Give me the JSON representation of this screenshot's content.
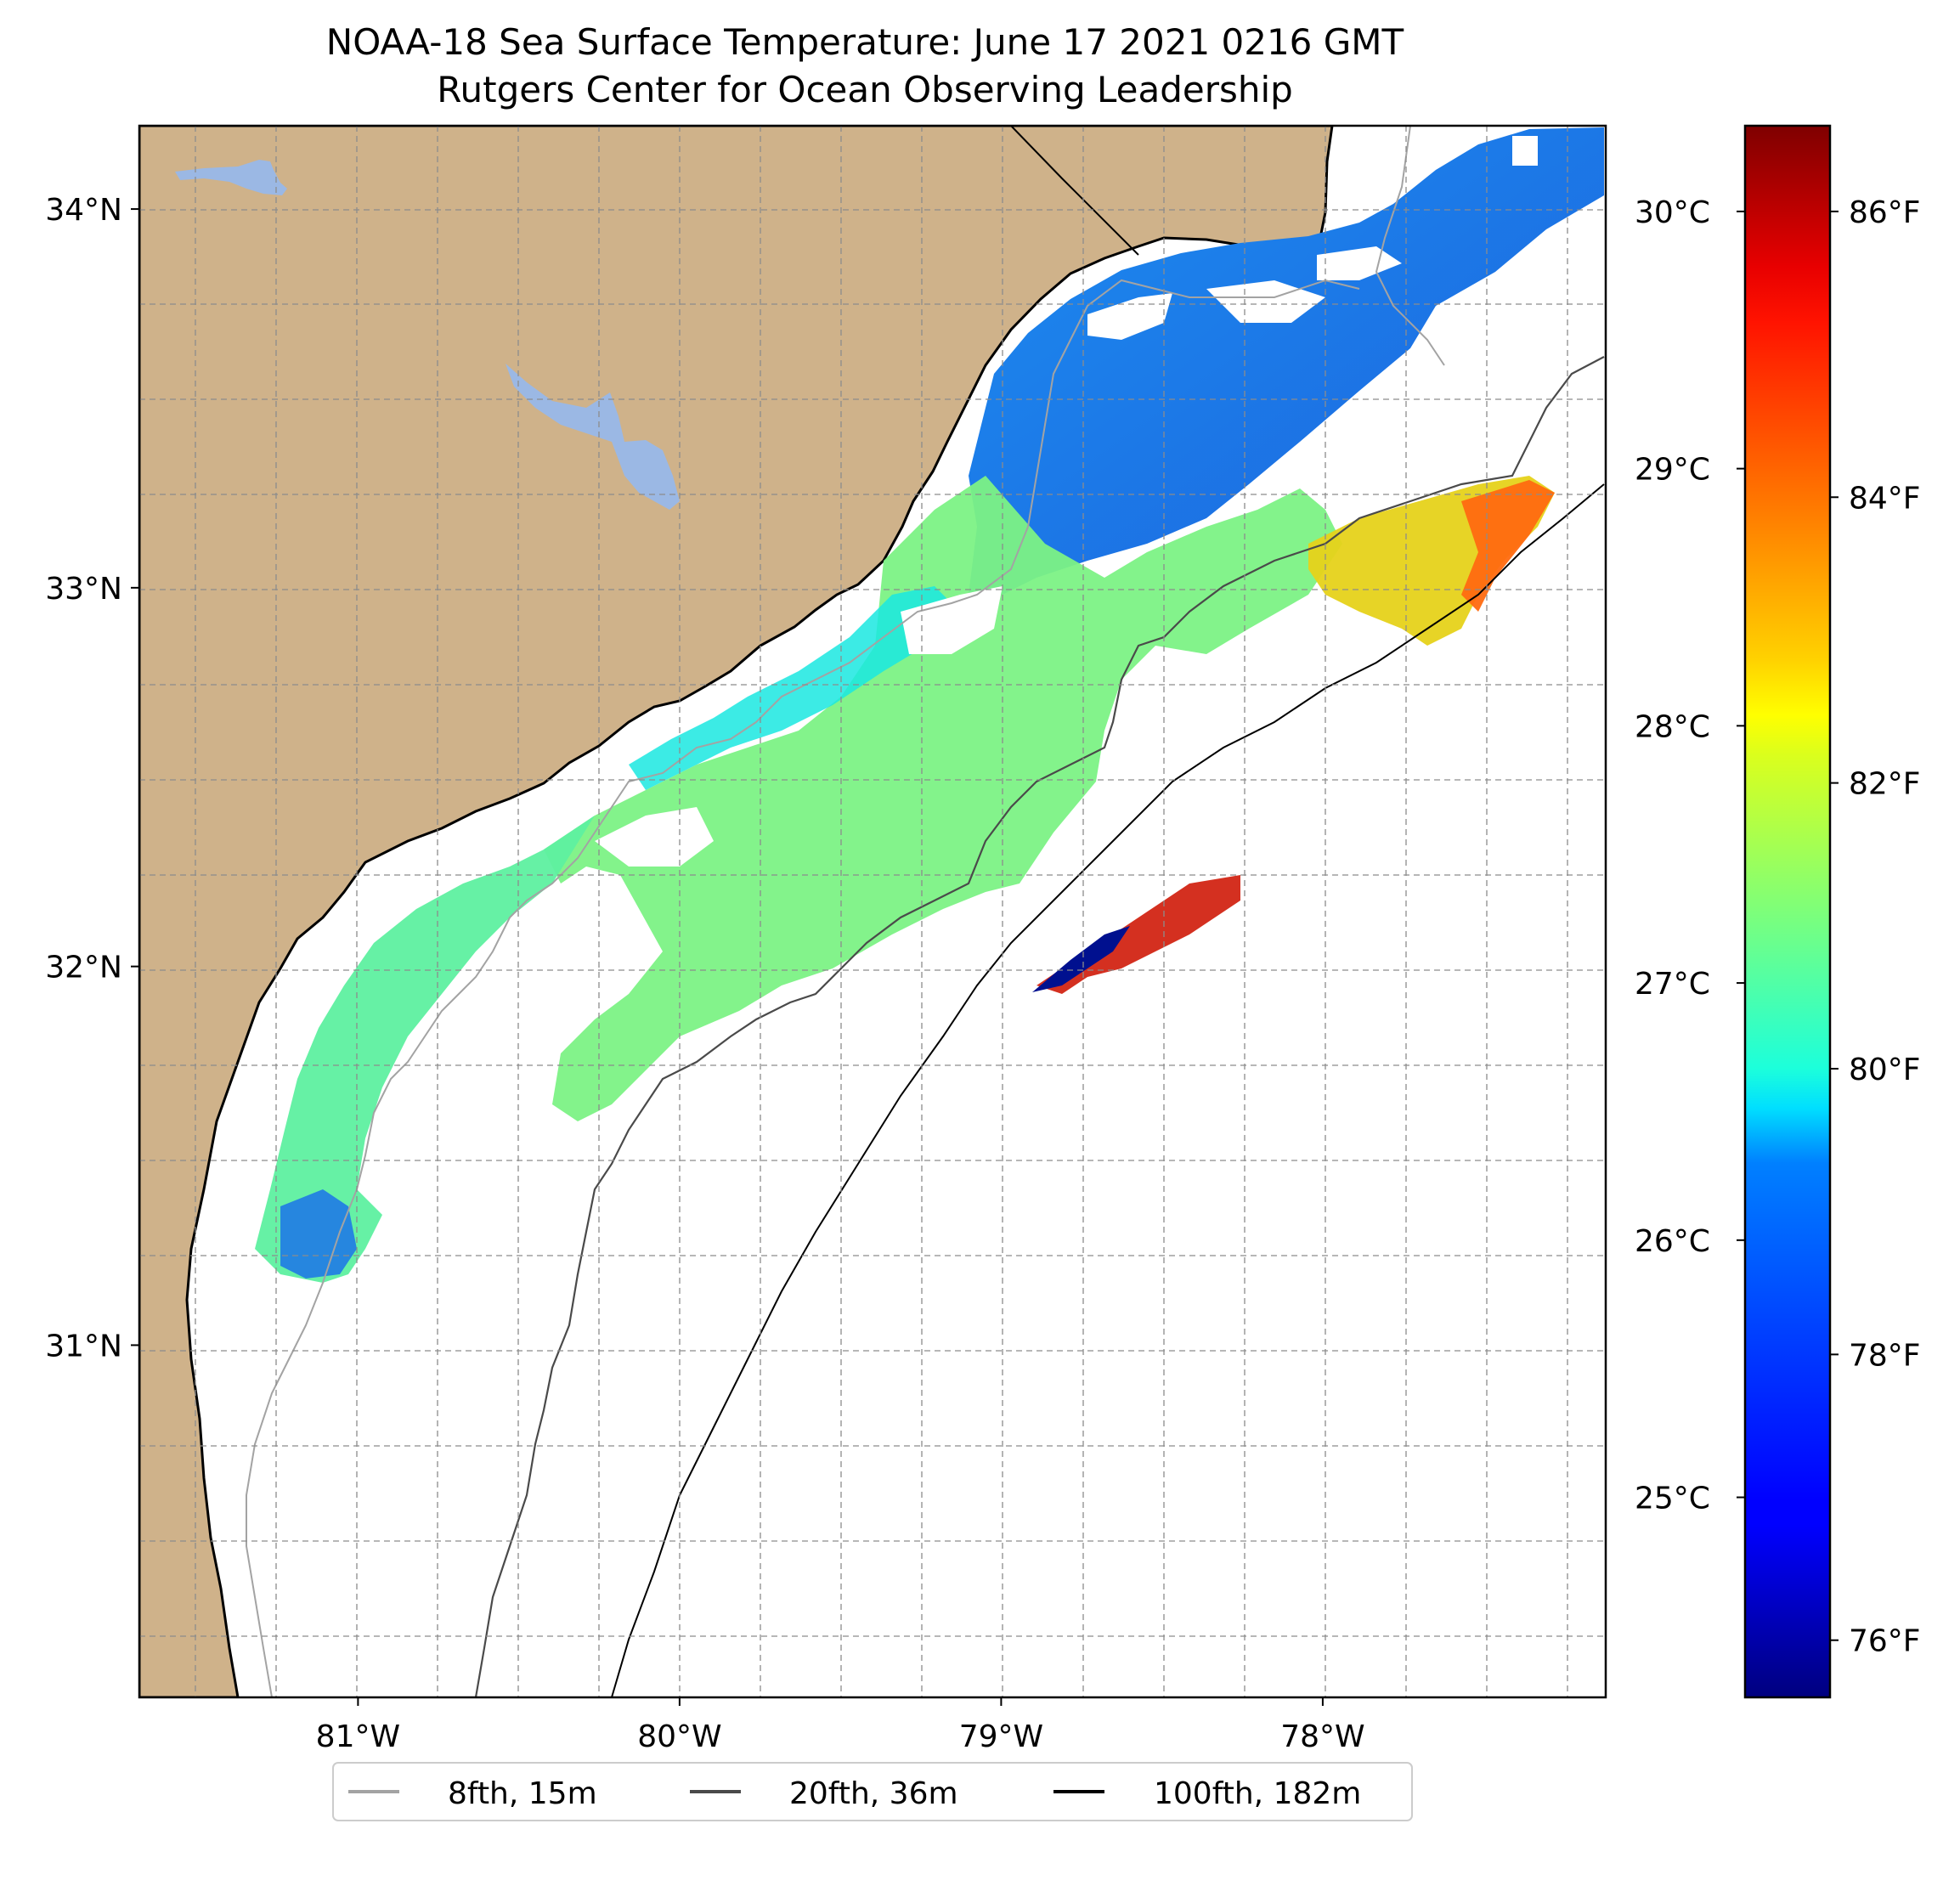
{
  "title": {
    "line1": "NOAA-18 Sea Surface Temperature: June 17 2021 0216 GMT",
    "line2": "Rutgers Center for Ocean Observing Leadership"
  },
  "map": {
    "lon_range": [
      -81.68,
      -77.12
    ],
    "lat_range": [
      30.07,
      34.22
    ],
    "lat_ticks": [
      {
        "value": 34,
        "label": "34°N"
      },
      {
        "value": 33,
        "label": "33°N"
      },
      {
        "value": 32,
        "label": "32°N"
      },
      {
        "value": 31,
        "label": "31°N"
      }
    ],
    "lon_ticks": [
      {
        "value": -81,
        "label": "81°W"
      },
      {
        "value": -80,
        "label": "80°W"
      },
      {
        "value": -79,
        "label": "79°W"
      },
      {
        "value": -78,
        "label": "78°W"
      }
    ],
    "gridlines": "dashed",
    "colors": {
      "land": "#cfb28a",
      "lakes": "#9bb8e4",
      "coastline": "#000000",
      "ocean_no_data": "#ffffff"
    }
  },
  "colorbar": {
    "colormap": "jet",
    "celsius_ticks": [
      {
        "value": 30,
        "label": "30°C"
      },
      {
        "value": 29,
        "label": "29°C"
      },
      {
        "value": 28,
        "label": "28°C"
      },
      {
        "value": 27,
        "label": "27°C"
      },
      {
        "value": 26,
        "label": "26°C"
      },
      {
        "value": 25,
        "label": "25°C"
      }
    ],
    "fahrenheit_ticks": [
      {
        "value": 86,
        "label": "86°F"
      },
      {
        "value": 84,
        "label": "84°F"
      },
      {
        "value": 82,
        "label": "82°F"
      },
      {
        "value": 80,
        "label": "80°F"
      },
      {
        "value": 78,
        "label": "78°F"
      },
      {
        "value": 76,
        "label": "76°F"
      }
    ],
    "f_range": [
      75.6,
      86.6
    ]
  },
  "legend": {
    "placement": "bottom-center",
    "entries": [
      {
        "label": "8fth, 15m",
        "color": "#a3a3a3"
      },
      {
        "label": "20fth, 36m",
        "color": "#4a4a4a"
      },
      {
        "label": "100fth, 182m",
        "color": "#000000"
      }
    ]
  }
}
